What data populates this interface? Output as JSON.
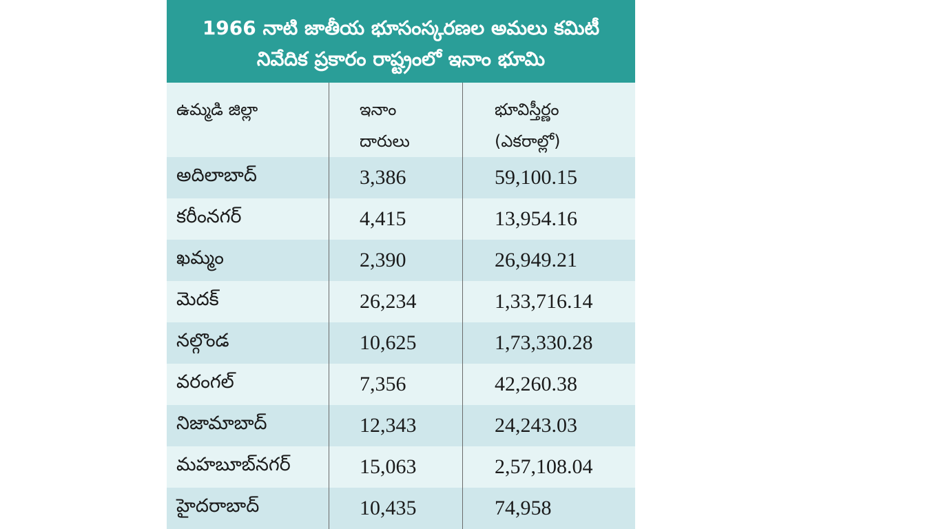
{
  "header": {
    "title_lines": [
      "1966 నాటి జాతీయ భూసంస్కరణల అమలు కమిటీ",
      "నివేదిక ప్రకారం రాష్ట్రంలో ఇనాం భూమి"
    ]
  },
  "table": {
    "columns": [
      [
        "ఉమ్మడి జిల్లా"
      ],
      [
        "ఇనాం",
        "దారులు"
      ],
      [
        "భూవిస్తీర్ణం",
        "(ఎకరాల్లో)"
      ]
    ],
    "rows": [
      [
        "అదిలాబాద్",
        "3,386",
        "59,100.15"
      ],
      [
        "కరీంనగర్",
        "4,415",
        "13,954.16"
      ],
      [
        "ఖమ్మం",
        "2,390",
        "26,949.21"
      ],
      [
        "మెదక్",
        "26,234",
        "1,33,716.14"
      ],
      [
        "నల్గొండ",
        "10,625",
        "1,73,330.28"
      ],
      [
        "వరంగల్",
        "7,356",
        "42,260.38"
      ],
      [
        "నిజామాబాద్",
        "12,343",
        "24,243.03"
      ],
      [
        "మహబూబ్‌నగర్",
        "15,063",
        "2,57,108.04"
      ],
      [
        "హైదరాబాద్",
        "10,435",
        "74,958"
      ]
    ]
  }
}
